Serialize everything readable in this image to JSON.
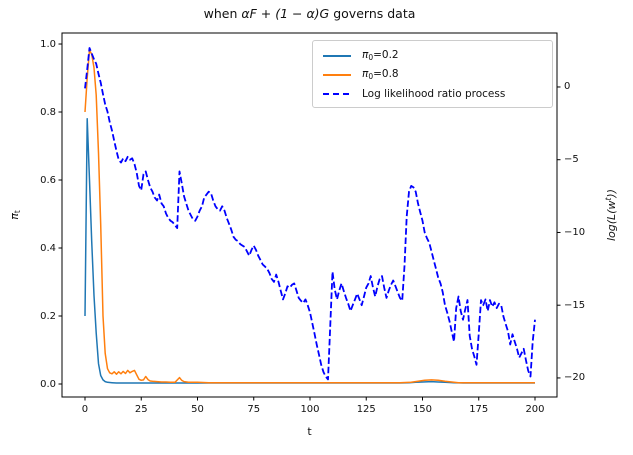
{
  "chart_data": {
    "type": "line",
    "title": "when αF + (1 − α)G governs data",
    "title_parts": {
      "pre": "when ",
      "math": "αF + (1 − α)G",
      "post": " governs data"
    },
    "xlabel": "t",
    "ylabel_left": "π_t",
    "ylabel_left_parts": {
      "base": "π",
      "sub": "t"
    },
    "ylabel_right": "log(L(w^t))",
    "ylabel_right_parts": {
      "pre": "log(L(w",
      "sup": "t",
      "post": "))"
    },
    "xlim": [
      -10.22,
      209.78
    ],
    "ylim_left": [
      -0.0382,
      1.0324
    ],
    "ylim_right": [
      -21.31,
      3.71
    ],
    "grid": false,
    "x_ticks": {
      "values": [
        0,
        25,
        50,
        75,
        100,
        125,
        150,
        175,
        200
      ],
      "labels": [
        "0",
        "25",
        "50",
        "75",
        "100",
        "125",
        "150",
        "175",
        "200"
      ]
    },
    "y_ticks_left": {
      "values": [
        0.0,
        0.2,
        0.4,
        0.6,
        0.8,
        1.0
      ],
      "labels": [
        "0.0",
        "0.2",
        "0.4",
        "0.6",
        "0.8",
        "1.0"
      ]
    },
    "y_ticks_right": {
      "values": [
        0,
        -5,
        -10,
        -15,
        -20
      ],
      "labels": [
        "0",
        "−5",
        "−10",
        "−15",
        "−20"
      ]
    },
    "legend": {
      "position": "upper right",
      "items": [
        {
          "pre": "π",
          "sub": "0",
          "post": "=0.2",
          "color": "#1f77b4",
          "style": "solid"
        },
        {
          "pre": "π",
          "sub": "0",
          "post": "=0.8",
          "color": "#ff7f0e",
          "style": "solid"
        },
        {
          "pre": "Log likelihood ratio process",
          "sub": "",
          "post": "",
          "color": "#0000ff",
          "style": "dashed"
        }
      ]
    },
    "series": [
      {
        "key": "pi0-0.2",
        "name": "π0=0.2",
        "axis": "left",
        "color": "#1f77b4",
        "style": "solid",
        "width": 1.5,
        "points": [
          [
            0,
            0.2
          ],
          [
            1,
            0.78
          ],
          [
            2,
            0.6
          ],
          [
            3,
            0.42
          ],
          [
            4,
            0.26
          ],
          [
            5,
            0.15
          ],
          [
            6,
            0.06
          ],
          [
            7,
            0.025
          ],
          [
            8,
            0.012
          ],
          [
            9,
            0.007
          ],
          [
            10,
            0.005
          ],
          [
            12,
            0.004
          ],
          [
            14,
            0.003
          ],
          [
            16,
            0.003
          ],
          [
            18,
            0.003
          ],
          [
            20,
            0.003
          ],
          [
            25,
            0.003
          ],
          [
            30,
            0.003
          ],
          [
            40,
            0.003
          ],
          [
            50,
            0.003
          ],
          [
            60,
            0.003
          ],
          [
            70,
            0.003
          ],
          [
            80,
            0.003
          ],
          [
            90,
            0.003
          ],
          [
            100,
            0.003
          ],
          [
            110,
            0.003
          ],
          [
            120,
            0.003
          ],
          [
            130,
            0.003
          ],
          [
            140,
            0.003
          ],
          [
            144,
            0.004
          ],
          [
            147,
            0.005
          ],
          [
            150,
            0.006
          ],
          [
            154,
            0.007
          ],
          [
            157,
            0.006
          ],
          [
            160,
            0.005
          ],
          [
            164,
            0.004
          ],
          [
            168,
            0.003
          ],
          [
            175,
            0.003
          ],
          [
            185,
            0.003
          ],
          [
            200,
            0.003
          ]
        ]
      },
      {
        "key": "pi0-0.8",
        "name": "π0=0.8",
        "axis": "left",
        "color": "#ff7f0e",
        "style": "solid",
        "width": 1.5,
        "points": [
          [
            0,
            0.8
          ],
          [
            1,
            0.9
          ],
          [
            2,
            0.982
          ],
          [
            3,
            0.97
          ],
          [
            4,
            0.93
          ],
          [
            5,
            0.85
          ],
          [
            6,
            0.68
          ],
          [
            7,
            0.47
          ],
          [
            8,
            0.2
          ],
          [
            9,
            0.09
          ],
          [
            10,
            0.045
          ],
          [
            11,
            0.033
          ],
          [
            12,
            0.03
          ],
          [
            13,
            0.036
          ],
          [
            14,
            0.029
          ],
          [
            15,
            0.036
          ],
          [
            16,
            0.03
          ],
          [
            17,
            0.037
          ],
          [
            18,
            0.031
          ],
          [
            19,
            0.04
          ],
          [
            20,
            0.033
          ],
          [
            21,
            0.037
          ],
          [
            22,
            0.04
          ],
          [
            23,
            0.027
          ],
          [
            24,
            0.014
          ],
          [
            25,
            0.011
          ],
          [
            26,
            0.012
          ],
          [
            27,
            0.022
          ],
          [
            28,
            0.013
          ],
          [
            29,
            0.009
          ],
          [
            30,
            0.008
          ],
          [
            32,
            0.007
          ],
          [
            34,
            0.006
          ],
          [
            36,
            0.006
          ],
          [
            38,
            0.005
          ],
          [
            40,
            0.005
          ],
          [
            42,
            0.019
          ],
          [
            43,
            0.011
          ],
          [
            44,
            0.007
          ],
          [
            46,
            0.005
          ],
          [
            48,
            0.005
          ],
          [
            50,
            0.005
          ],
          [
            55,
            0.004
          ],
          [
            60,
            0.004
          ],
          [
            70,
            0.004
          ],
          [
            80,
            0.004
          ],
          [
            90,
            0.004
          ],
          [
            100,
            0.004
          ],
          [
            110,
            0.004
          ],
          [
            120,
            0.004
          ],
          [
            130,
            0.004
          ],
          [
            140,
            0.004
          ],
          [
            145,
            0.005
          ],
          [
            148,
            0.008
          ],
          [
            151,
            0.011
          ],
          [
            154,
            0.012
          ],
          [
            157,
            0.011
          ],
          [
            160,
            0.008
          ],
          [
            163,
            0.006
          ],
          [
            166,
            0.004
          ],
          [
            170,
            0.004
          ],
          [
            180,
            0.004
          ],
          [
            190,
            0.004
          ],
          [
            200,
            0.004
          ]
        ]
      },
      {
        "key": "log-likelihood-ratio",
        "name": "Log likelihood ratio process",
        "axis": "right",
        "color": "#0000ff",
        "style": "dashed",
        "width": 1.8,
        "x_start": 0,
        "x_step": 1,
        "values": [
          -0.1,
          1.2,
          2.68,
          2.3,
          1.9,
          1.6,
          0.9,
          0.3,
          -0.5,
          -1.2,
          -1.7,
          -2.4,
          -3.0,
          -3.7,
          -4.4,
          -5.0,
          -5.2,
          -4.9,
          -5.1,
          -4.8,
          -5.0,
          -4.9,
          -5.3,
          -5.9,
          -6.8,
          -7.1,
          -6.0,
          -5.8,
          -6.4,
          -6.9,
          -7.2,
          -7.6,
          -7.8,
          -7.4,
          -8.0,
          -8.2,
          -8.7,
          -9.0,
          -9.2,
          -9.3,
          -9.5,
          -9.7,
          -5.8,
          -6.6,
          -7.5,
          -8.0,
          -8.5,
          -8.8,
          -9.1,
          -9.2,
          -8.9,
          -8.5,
          -8.2,
          -7.6,
          -7.4,
          -7.2,
          -7.3,
          -7.8,
          -8.2,
          -8.4,
          -8.5,
          -8.2,
          -8.5,
          -9.0,
          -9.4,
          -9.8,
          -10.3,
          -10.5,
          -10.6,
          -10.8,
          -10.9,
          -11.0,
          -11.3,
          -11.6,
          -11.2,
          -10.9,
          -11.2,
          -11.6,
          -11.9,
          -12.2,
          -12.35,
          -12.5,
          -12.8,
          -13.2,
          -13.4,
          -12.9,
          -13.4,
          -14.0,
          -14.6,
          -14.2,
          -13.7,
          -13.8,
          -13.6,
          -13.5,
          -14.0,
          -14.5,
          -14.7,
          -14.85,
          -14.6,
          -15.0,
          -15.5,
          -16.2,
          -16.95,
          -17.7,
          -18.4,
          -19.1,
          -19.6,
          -19.9,
          -20.1,
          -16.5,
          -12.7,
          -13.9,
          -14.6,
          -14.0,
          -13.5,
          -14.0,
          -14.5,
          -14.9,
          -15.4,
          -15.0,
          -14.6,
          -14.2,
          -14.6,
          -15.0,
          -14.4,
          -13.8,
          -13.5,
          -13.0,
          -13.8,
          -14.4,
          -13.7,
          -13.2,
          -13.0,
          -13.8,
          -14.5,
          -14.0,
          -13.6,
          -13.3,
          -13.7,
          -14.1,
          -14.5,
          -14.7,
          -12.3,
          -8.9,
          -7.2,
          -6.8,
          -6.9,
          -7.2,
          -8.0,
          -8.6,
          -9.2,
          -10.0,
          -10.4,
          -10.7,
          -11.3,
          -11.9,
          -12.5,
          -13.1,
          -13.5,
          -14.1,
          -15.0,
          -15.5,
          -16.1,
          -16.8,
          -17.5,
          -15.2,
          -14.4,
          -15.4,
          -16.0,
          -15.3,
          -14.65,
          -17.1,
          -18.0,
          -18.5,
          -19.1,
          -17.0,
          -14.65,
          -15.0,
          -14.6,
          -15.4,
          -14.65,
          -15.1,
          -14.8,
          -15.2,
          -14.9,
          -15.0,
          -15.8,
          -16.3,
          -16.8,
          -17.7,
          -17.0,
          -17.5,
          -18.0,
          -18.6,
          -18.3,
          -18.0,
          -18.8,
          -19.5,
          -19.9,
          -17.5,
          -16.0
        ]
      }
    ]
  }
}
